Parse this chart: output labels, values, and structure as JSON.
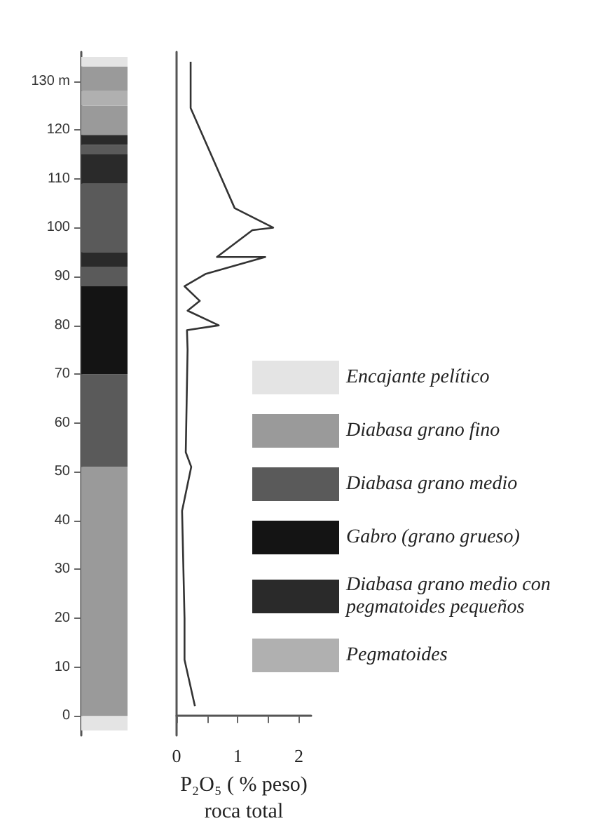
{
  "chart_data": [
    {
      "type": "bar",
      "stacked": true,
      "categories": [
        null
      ],
      "ylim": [
        -4,
        136
      ],
      "yticks": [
        0,
        10,
        20,
        30,
        40,
        50,
        60,
        70,
        80,
        90,
        100,
        110,
        120,
        {
          "value": 130,
          "label": "130 m"
        }
      ],
      "tick_labels": "y",
      "legend": "right",
      "series": [
        {
          "name": "Encajante pelítico",
          "color": "#e4e4e4",
          "values": [
            -3
          ]
        },
        {
          "name": "Diabasa grano fino",
          "color": "#9a9a9a",
          "values": [
            51
          ]
        },
        {
          "name": "Diabasa grano medio",
          "color": "#5a5a5a",
          "values": [
            19
          ]
        },
        {
          "name": "Gabro (grano grueso)",
          "color": "#141414",
          "values": [
            18
          ]
        },
        {
          "color": "#5a5a5a",
          "values": [
            4
          ]
        },
        {
          "name": "Diabasa grano medio con pegmatoides pequeños",
          "color": "#2a2a2a",
          "values": [
            3
          ]
        },
        {
          "color": "#5a5a5a",
          "values": [
            14
          ]
        },
        {
          "color": "#2a2a2a",
          "values": [
            6
          ]
        },
        {
          "color": "#5a5a5a",
          "values": [
            2
          ]
        },
        {
          "color": "#2a2a2a",
          "values": [
            2
          ]
        },
        {
          "color": "#9a9a9a",
          "values": [
            6
          ]
        },
        {
          "name": "Pegmatoides",
          "color": "#b0b0b0",
          "values": [
            3
          ]
        },
        {
          "color": "#9a9a9a",
          "values": [
            5
          ]
        },
        {
          "color": "#e4e4e4",
          "values": [
            2
          ]
        }
      ]
    },
    {
      "type": "line",
      "xlabel": "P₂O₅ ( % peso)\nroca total",
      "xlim": [
        0,
        2.2
      ],
      "xticks": [
        0,
        {
          "value": 0.5,
          "label": null
        },
        1,
        {
          "value": 1.5,
          "label": null
        },
        2
      ],
      "ylim": [
        -4,
        136
      ],
      "tick_labels": "x",
      "series": [
        {
          "color": "#333333",
          "x": [
            0.3,
            0.13,
            0.13,
            0.09,
            0.24,
            0.15,
            0.18,
            0.17,
            0.69,
            0.18,
            0.38,
            0.13,
            0.47,
            1.45,
            0.66,
            1.24,
            1.58,
            0.95,
            0.23,
            0.23
          ],
          "values": [
            2,
            11.5,
            20,
            42,
            51,
            54,
            75,
            79,
            80,
            83,
            85,
            88,
            90.5,
            94,
            94,
            99.5,
            100,
            104,
            124.5,
            134
          ]
        }
      ]
    }
  ]
}
